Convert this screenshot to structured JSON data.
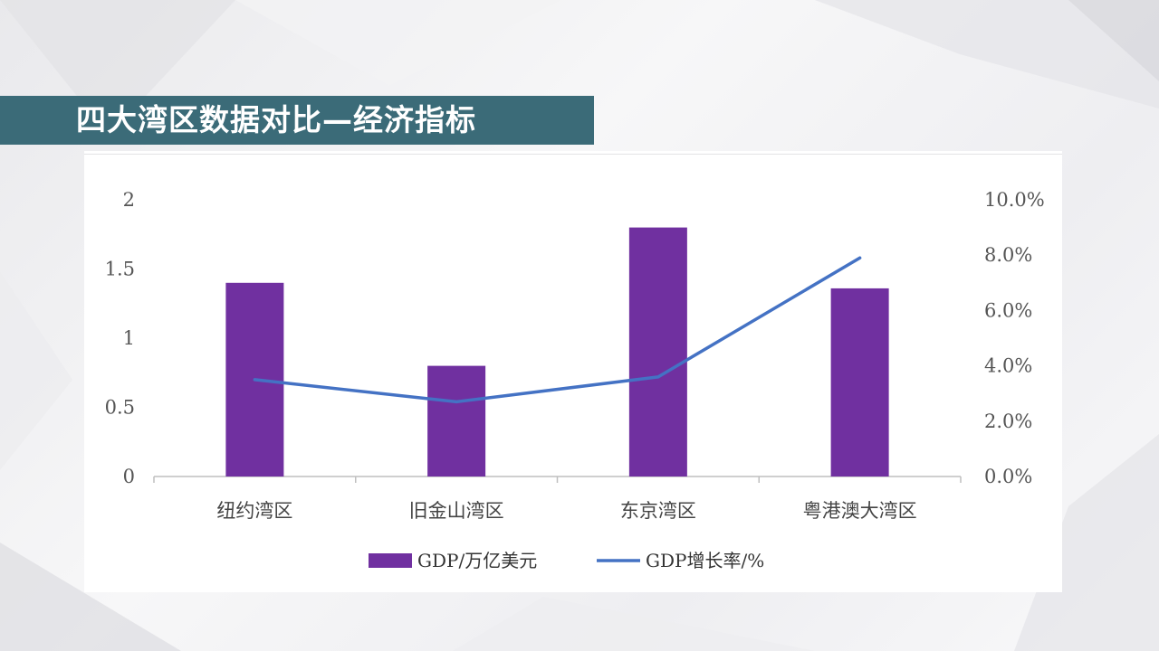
{
  "slide": {
    "title": "四大湾区数据对比—经济指标"
  },
  "colors": {
    "title_bar": "#3b6b78",
    "bar": "#7030a0",
    "line": "#4472c4",
    "axis": "#bfbfbf"
  },
  "chart_data": {
    "type": "bar",
    "categories": [
      "纽约湾区",
      "旧金山湾区",
      "东京湾区",
      "粤港澳大湾区"
    ],
    "series": [
      {
        "name": "GDP/万亿美元",
        "type": "bar",
        "axis": "left",
        "values": [
          1.4,
          0.8,
          1.8,
          1.36
        ]
      },
      {
        "name": "GDP增长率/%",
        "type": "line",
        "axis": "right",
        "values": [
          3.5,
          2.7,
          3.6,
          7.9
        ]
      }
    ],
    "y_left": {
      "ylim": [
        0,
        2
      ],
      "ticks": [
        "0",
        "0.5",
        "1",
        "1.5",
        "2"
      ]
    },
    "y_right": {
      "ylim": [
        0,
        10
      ],
      "ticks": [
        "0.0%",
        "2.0%",
        "4.0%",
        "6.0%",
        "8.0%",
        "10.0%"
      ]
    },
    "legend_position": "bottom",
    "grid": false
  }
}
